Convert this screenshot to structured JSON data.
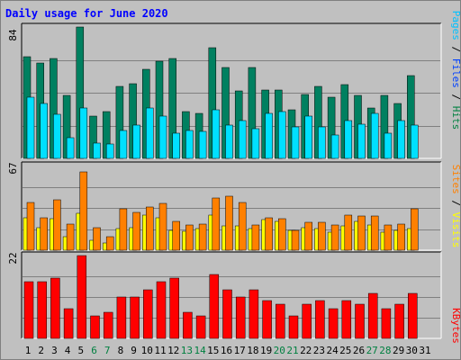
{
  "title": "Daily usage for June 2020",
  "colors": {
    "page_bg": "#c0c0c0",
    "plot_bg": "#c0c0c0",
    "title_text": "#0000ff",
    "border_dark": "#808080",
    "border_light": "#ffffff",
    "grid": "#808080",
    "weekday_label": "#000000",
    "weekend_label": "#008040"
  },
  "chart_data": [
    {
      "type": "bar",
      "panel": "hits-files-pages",
      "axis_max_label": "84",
      "ylim": [
        0,
        84
      ],
      "legend": [
        {
          "text": "Pages",
          "color": "#00c0ff"
        },
        {
          "text": " / ",
          "color": "#000000"
        },
        {
          "text": "Files",
          "color": "#0040ff"
        },
        {
          "text": " / ",
          "color": "#000000"
        },
        {
          "text": "Hits",
          "color": "#008040"
        }
      ],
      "series": [
        {
          "name": "Hits",
          "color": "#008060",
          "values": [
            65,
            61,
            64,
            40,
            84,
            27,
            30,
            46,
            48,
            57,
            62,
            64,
            30,
            29,
            71,
            58,
            43,
            58,
            44,
            44,
            31,
            41,
            46,
            39,
            47,
            40,
            32,
            40,
            35,
            53,
            0
          ]
        },
        {
          "name": "Pages",
          "color": "#00e0ff",
          "values": [
            39,
            35,
            28,
            13,
            32,
            10,
            9,
            18,
            21,
            32,
            27,
            16,
            18,
            17,
            31,
            21,
            24,
            19,
            29,
            30,
            20,
            27,
            20,
            15,
            24,
            22,
            29,
            16,
            24,
            21,
            0
          ]
        }
      ]
    },
    {
      "type": "bar",
      "panel": "visits-sites",
      "axis_max_label": "67",
      "ylim": [
        0,
        67
      ],
      "legend": [
        {
          "text": "Sites",
          "color": "#ff8000"
        },
        {
          "text": " / ",
          "color": "#000000"
        },
        {
          "text": "Visits",
          "color": "#ffff00"
        }
      ],
      "series": [
        {
          "name": "Visits",
          "color": "#ffff00",
          "values": [
            26,
            18,
            25,
            11,
            29,
            8,
            6,
            17,
            18,
            28,
            26,
            16,
            15,
            17,
            28,
            19,
            19,
            17,
            24,
            23,
            16,
            18,
            17,
            14,
            19,
            23,
            20,
            14,
            16,
            17,
            0
          ]
        },
        {
          "name": "Sites",
          "color": "#ff8000",
          "values": [
            38,
            26,
            40,
            21,
            62,
            18,
            11,
            33,
            30,
            34,
            37,
            23,
            20,
            21,
            41,
            43,
            38,
            20,
            26,
            25,
            16,
            22,
            22,
            20,
            28,
            27,
            27,
            20,
            21,
            33,
            0
          ]
        }
      ]
    },
    {
      "type": "bar",
      "panel": "kbytes",
      "axis_max_label": "22",
      "ylim": [
        0,
        22
      ],
      "legend": [
        {
          "text": "KBytes",
          "color": "#ff0000"
        }
      ],
      "series": [
        {
          "name": "KBytes",
          "color": "#ff0000",
          "values": [
            15,
            15,
            16,
            8,
            22,
            6,
            7,
            11,
            11,
            13,
            15,
            16,
            7,
            6,
            17,
            13,
            11,
            13,
            10,
            9,
            6,
            9,
            10,
            8,
            10,
            9,
            12,
            8,
            9,
            12,
            0
          ]
        }
      ]
    }
  ],
  "x_axis": {
    "labels": [
      "1",
      "2",
      "3",
      "4",
      "5",
      "6",
      "7",
      "8",
      "9",
      "10",
      "11",
      "12",
      "13",
      "14",
      "15",
      "16",
      "17",
      "18",
      "19",
      "20",
      "21",
      "22",
      "23",
      "24",
      "25",
      "26",
      "27",
      "28",
      "29",
      "30",
      "31"
    ],
    "weekend_days": [
      6,
      7,
      13,
      14,
      20,
      21,
      27,
      28
    ]
  }
}
